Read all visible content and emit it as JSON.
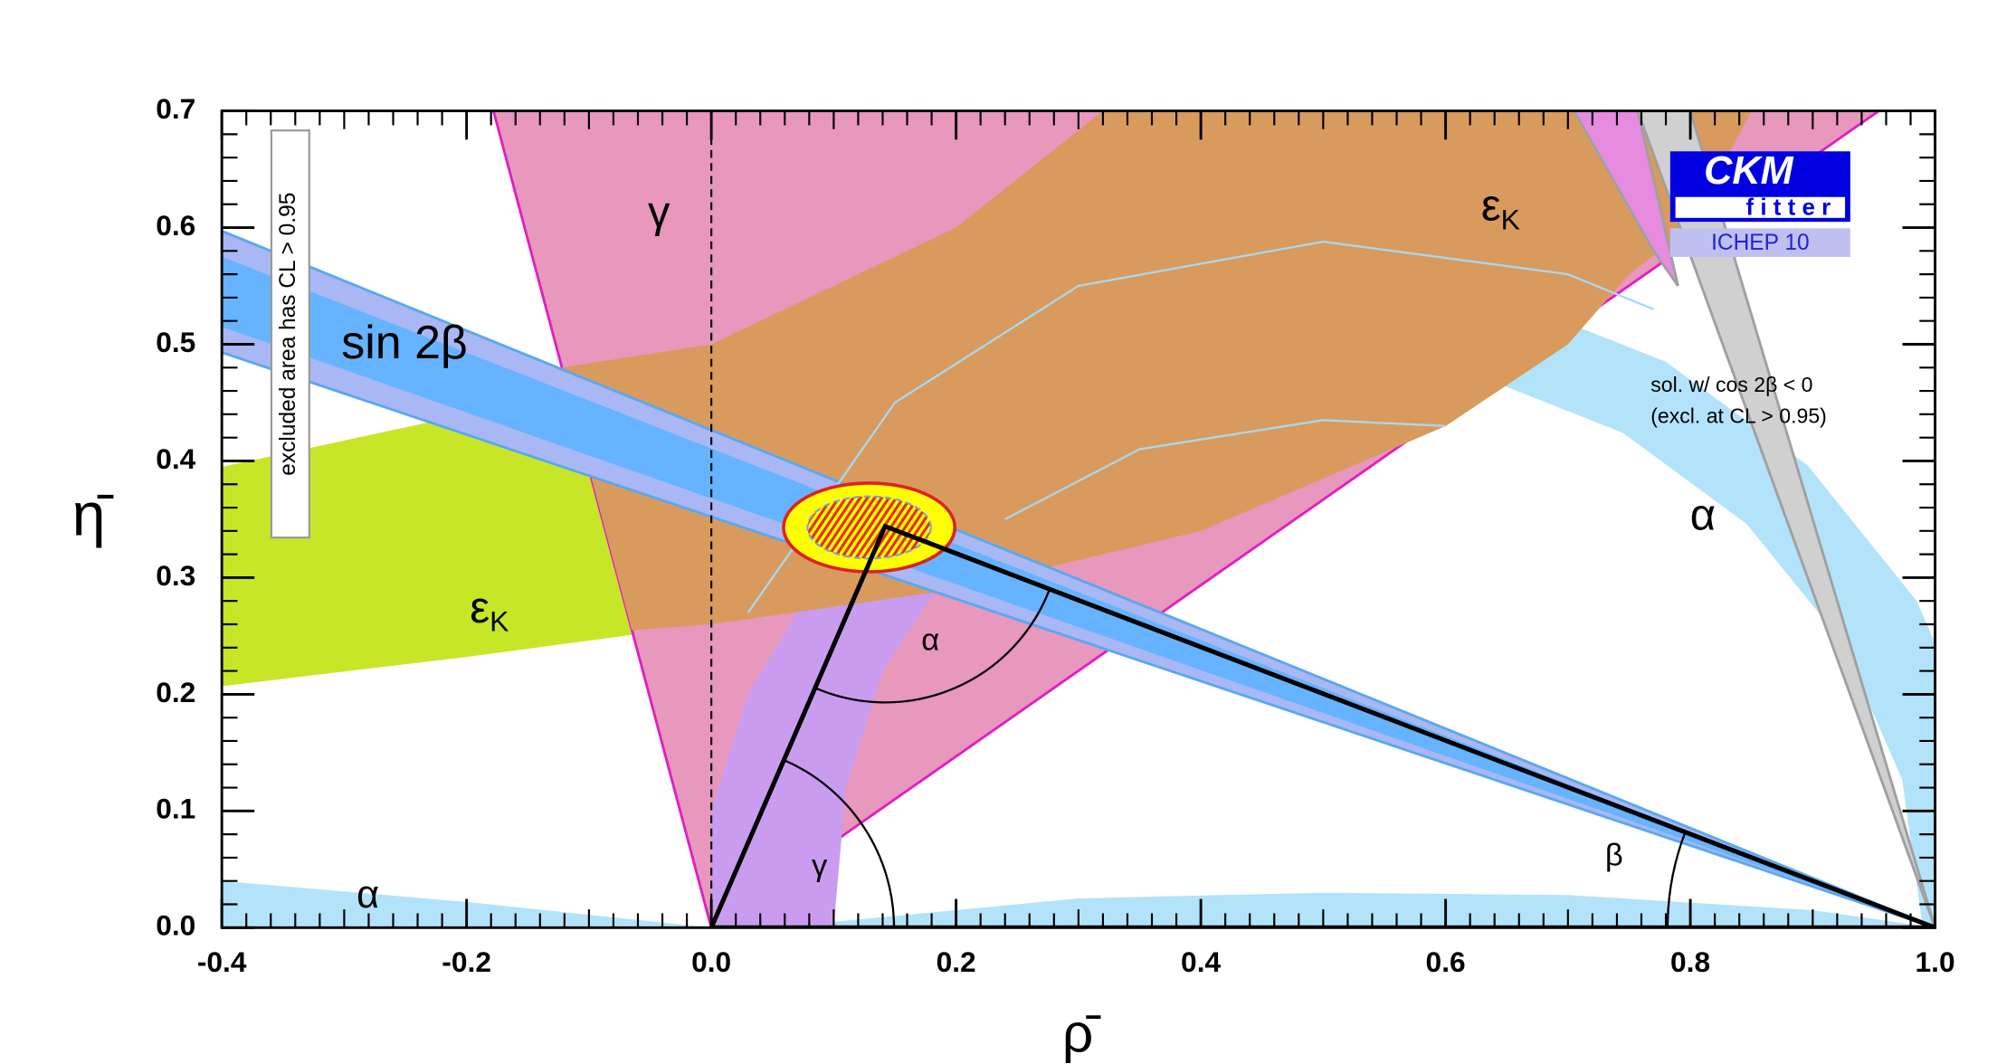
{
  "chart_data": {
    "type": "ckm",
    "xlabel": "ρ̄",
    "ylabel": "η̄",
    "xlim": [
      -0.4,
      1.0
    ],
    "ylim": [
      0,
      0.7
    ],
    "xticks": [
      -0.4,
      -0.2,
      {
        "value": 0,
        "label": "0.0"
      },
      0.2,
      0.4,
      0.6,
      0.8,
      {
        "value": 1,
        "label": "1.0"
      }
    ],
    "yticks": [
      {
        "value": 0,
        "label": "0.0"
      },
      0.1,
      0.2,
      0.3,
      0.4,
      0.5,
      0.6,
      0.7
    ],
    "regions": [
      {
        "color": "#b3e3fa",
        "x": [
          1.06,
          1.041,
          0.985,
          0.896,
          0.78,
          0.645,
          0.5,
          0.355,
          0.373,
          0.5,
          0.627,
          0.745,
          0.846,
          0.924,
          0.973,
          0.99
        ],
        "y": [
          0,
          0.145,
          0.28,
          0.396,
          0.485,
          0.541,
          0.56,
          0.541,
          0.473,
          0.49,
          0.473,
          0.424,
          0.346,
          0.245,
          0.127,
          0
        ]
      },
      {
        "color": "#b3e3fa",
        "x": [
          0.05,
          0.3,
          0.5,
          0.7,
          0.9,
          1.0
        ],
        "y": [
          0,
          0.025,
          0.03,
          0.028,
          0.015,
          0
        ]
      },
      {
        "color": "#b3e3fa",
        "x": [
          -0.4,
          -0.4,
          -0.2,
          0
        ],
        "y": [
          0,
          0.04,
          0.022,
          0
        ]
      },
      {
        "color": "#c8e628",
        "x": [
          -0.4,
          -0.2,
          0,
          0.2,
          0.4,
          0.6,
          0.7,
          0.75,
          0.8,
          0.85,
          0.32,
          0.2,
          0,
          -0.2,
          -0.4
        ],
        "y": [
          0.207,
          0.232,
          0.26,
          0.29,
          0.34,
          0.43,
          0.5,
          0.56,
          0.6,
          0.7,
          0.7,
          0.6,
          0.5,
          0.44,
          0.395
        ]
      },
      {
        "color": "#e897bd",
        "edge": "#e020c0",
        "x": [
          0,
          -0.178,
          0.954
        ],
        "y": [
          0,
          0.7,
          0.7
        ]
      },
      {
        "color": "#c99cf0",
        "x": [
          0,
          0,
          0.03,
          0.07,
          0.12,
          0.19,
          0.14,
          0.11,
          0.1
        ],
        "y": [
          0,
          0.1,
          0.2,
          0.27,
          0.31,
          0.3,
          0.22,
          0.12,
          0
        ]
      },
      {
        "color": "#d99a5e",
        "x": [
          -0.065,
          0,
          0.2,
          0.4,
          0.6,
          0.7,
          0.75,
          0.8,
          0.85,
          0.32,
          0.2,
          0,
          -0.122
        ],
        "y": [
          0.255,
          0.26,
          0.29,
          0.34,
          0.43,
          0.5,
          0.56,
          0.6,
          0.7,
          0.7,
          0.6,
          0.5,
          0.48
        ]
      },
      {
        "color": "#e68be0",
        "edge": "#a0a0a0",
        "x": [
          0.705,
          0.757,
          0.79,
          0.77
        ],
        "y": [
          0.7,
          0.7,
          0.55,
          0.58
        ]
      },
      {
        "color": "#d0d0d0",
        "edge": "#a0a0a0",
        "x": [
          1.0,
          0.757,
          0.8
        ],
        "y": [
          0,
          0.7,
          0.7
        ]
      },
      {
        "color": "#a9b8f5",
        "edge": "#5aa8f0",
        "x": [
          1.0,
          -0.4,
          -0.4
        ],
        "y": [
          0,
          0.597,
          0.493
        ]
      },
      {
        "color": "#66b3ff",
        "x": [
          1.0,
          -0.4,
          -0.4
        ],
        "y": [
          0,
          0.575,
          0.515
        ]
      }
    ],
    "arcs": [
      {
        "color": "#a8d8f0",
        "x": [
          0.03,
          0.15,
          0.3,
          0.5,
          0.7,
          0.77
        ],
        "y": [
          0.27,
          0.45,
          0.55,
          0.588,
          0.56,
          0.53
        ]
      },
      {
        "color": "#a8d8f0",
        "x": [
          0.24,
          0.35,
          0.5,
          0.6
        ],
        "y": [
          0.35,
          0.41,
          0.435,
          0.43
        ]
      }
    ],
    "fit": {
      "x": 0.129,
      "y": 0.343,
      "rx": 0.07,
      "ry": 0.038
    },
    "triangle": {
      "x": [
        0,
        1,
        0.142
      ],
      "y": [
        0,
        0,
        0.344
      ]
    },
    "annotations": [
      {
        "text": "γ"
      },
      {
        "text": "γ"
      },
      {
        "text": "ε",
        "sub": "K"
      },
      {
        "text": "ε",
        "sub": "K"
      },
      {
        "text": "sin 2β"
      },
      {
        "text": "α"
      },
      {
        "text": "α"
      },
      {
        "text": "α"
      },
      {
        "text": "β"
      },
      {
        "text": "sol. w/ cos 2β < 0"
      },
      {
        "text": "(excl. at CL > 0.95)"
      },
      {
        "text": "excluded area has CL > 0.95"
      }
    ],
    "logo": {
      "title": "CKM",
      "subtitle": "fitter",
      "tag": "ICHEP 10"
    }
  }
}
